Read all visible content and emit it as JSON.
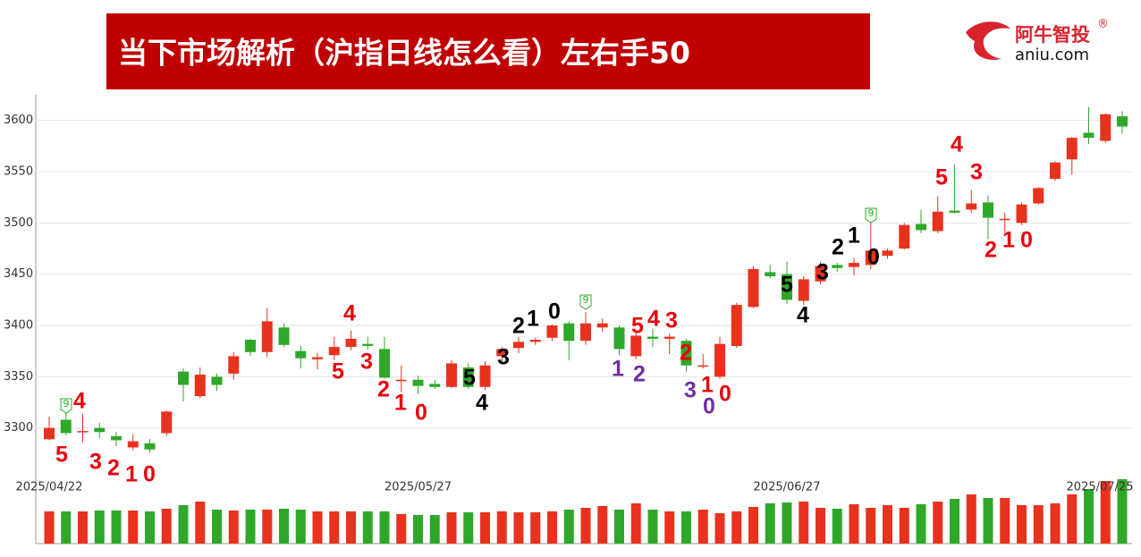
{
  "header": {
    "title": "当下市场解析（沪指日线怎么看）左右手50",
    "brand": "阿牛智投",
    "brand_mark": "®",
    "site": "aniu.com"
  },
  "chart_data": {
    "type": "candlestick",
    "categories": [
      "2025/04/22",
      null,
      null,
      null,
      null,
      null,
      null,
      null,
      null,
      null,
      null,
      null,
      null,
      null,
      null,
      null,
      null,
      null,
      null,
      null,
      null,
      null,
      "2025/05/27",
      null,
      null,
      null,
      null,
      null,
      null,
      null,
      null,
      null,
      null,
      null,
      null,
      null,
      null,
      null,
      null,
      null,
      null,
      null,
      null,
      null,
      "2025/06/27",
      null,
      null,
      null,
      null,
      null,
      null,
      null,
      null,
      null,
      null,
      null,
      null,
      null,
      null,
      null,
      null,
      null,
      null,
      null,
      "2025/07/25"
    ],
    "open": [
      3289,
      3308,
      3296,
      3300,
      3292,
      3281,
      3285,
      3295,
      3355,
      3331,
      3350,
      3353,
      3386,
      3374,
      3398,
      3375,
      3367,
      3371,
      3379,
      3382,
      3377,
      3346,
      3347,
      3343,
      3340,
      3359,
      3340,
      3370,
      3378,
      3384,
      3388,
      3402,
      3385,
      3398,
      3398,
      3370,
      3389,
      3387,
      3385,
      3360,
      3350,
      3380,
      3418,
      3452,
      3450,
      3424,
      3443,
      3459,
      3457,
      3459,
      3468,
      3475,
      3499,
      3492,
      3512,
      3513,
      3520,
      3503,
      3500,
      3519,
      3543,
      3562,
      3588,
      3580,
      3604
    ],
    "high": [
      3311,
      3315,
      3314,
      3305,
      3296,
      3294,
      3289,
      3317,
      3358,
      3359,
      3353,
      3374,
      3387,
      3417,
      3402,
      3380,
      3373,
      3389,
      3395,
      3389,
      3389,
      3361,
      3351,
      3347,
      3366,
      3363,
      3365,
      3379,
      3389,
      3388,
      3401,
      3404,
      3413,
      3407,
      3400,
      3393,
      3397,
      3392,
      3387,
      3372,
      3389,
      3422,
      3458,
      3459,
      3462,
      3448,
      3462,
      3461,
      3466,
      3501,
      3475,
      3500,
      3513,
      3526,
      3557,
      3532,
      3527,
      3510,
      3520,
      3535,
      3560,
      3584,
      3613,
      3607,
      3609
    ],
    "low": [
      3288,
      3293,
      3286,
      3290,
      3282,
      3278,
      3276,
      3292,
      3326,
      3329,
      3336,
      3347,
      3370,
      3369,
      3379,
      3358,
      3357,
      3366,
      3376,
      3376,
      3348,
      3335,
      3333,
      3338,
      3339,
      3338,
      3337,
      3362,
      3373,
      3381,
      3385,
      3366,
      3381,
      3394,
      3371,
      3367,
      3379,
      3372,
      3355,
      3358,
      3348,
      3378,
      3417,
      3446,
      3421,
      3420,
      3440,
      3452,
      3449,
      3455,
      3465,
      3474,
      3490,
      3490,
      3509,
      3510,
      3484,
      3490,
      3498,
      3518,
      3541,
      3547,
      3577,
      3578,
      3587
    ],
    "close": [
      3300,
      3295,
      3297,
      3296,
      3288,
      3287,
      3279,
      3316,
      3342,
      3352,
      3342,
      3370,
      3374,
      3404,
      3381,
      3368,
      3369,
      3379,
      3387,
      3380,
      3349,
      3347,
      3341,
      3340,
      3363,
      3340,
      3361,
      3377,
      3384,
      3386,
      3400,
      3385,
      3402,
      3402,
      3377,
      3390,
      3387,
      3389,
      3361,
      3361,
      3382,
      3420,
      3455,
      3448,
      3425,
      3445,
      3458,
      3456,
      3461,
      3473,
      3473,
      3498,
      3493,
      3511,
      3510,
      3519,
      3505,
      3504,
      3518,
      3534,
      3559,
      3583,
      3583,
      3606,
      3594
    ],
    "volume": [
      36,
      36,
      36,
      37,
      37,
      37,
      36,
      39,
      43,
      47,
      38,
      37,
      38,
      38,
      39,
      38,
      36,
      36,
      36,
      36,
      36,
      33,
      32,
      32,
      35,
      35,
      35,
      36,
      35,
      35,
      36,
      38,
      40,
      42,
      38,
      45,
      38,
      36,
      36,
      38,
      34,
      36,
      41,
      45,
      46,
      47,
      40,
      39,
      44,
      40,
      43,
      40,
      44,
      47,
      50,
      55,
      51,
      51,
      43,
      43,
      45,
      55,
      61,
      70,
      72
    ],
    "up_color": "#e8321e",
    "down_color": "#2fa82a",
    "ylim": [
      3250,
      3625
    ],
    "yticks": [
      3300,
      3350,
      3400,
      3450,
      3500,
      3550,
      3600
    ],
    "vlim": [
      0,
      72
    ],
    "grid": true,
    "annotations": [
      {
        "text": "5",
        "color": "#e8000b"
      },
      {
        "text": "4",
        "color": "#e8000b"
      },
      {
        "text": "3",
        "color": "#e8000b"
      },
      {
        "text": "2",
        "color": "#e8000b"
      },
      {
        "text": "1",
        "color": "#e8000b"
      },
      {
        "text": "0",
        "color": "#e8000b"
      },
      {
        "text": "4",
        "color": "#e8000b"
      },
      {
        "text": "5",
        "color": "#e8000b"
      },
      {
        "text": "3",
        "color": "#e8000b"
      },
      {
        "text": "2",
        "color": "#e8000b"
      },
      {
        "text": "1",
        "color": "#e8000b"
      },
      {
        "text": "0",
        "color": "#e8000b"
      },
      {
        "text": "5",
        "color": "#000000"
      },
      {
        "text": "4",
        "color": "#000000"
      },
      {
        "text": "3",
        "color": "#000000"
      },
      {
        "text": "2",
        "color": "#000000"
      },
      {
        "text": "1",
        "color": "#000000"
      },
      {
        "text": "0",
        "color": "#000000"
      },
      {
        "text": "1",
        "color": "#7030a0"
      },
      {
        "text": "2",
        "color": "#7030a0"
      },
      {
        "text": "5",
        "color": "#e8000b"
      },
      {
        "text": "4",
        "color": "#e8000b"
      },
      {
        "text": "3",
        "color": "#e8000b"
      },
      {
        "text": "2",
        "color": "#e8000b"
      },
      {
        "text": "3",
        "color": "#7030a0"
      },
      {
        "text": "1",
        "color": "#e8000b"
      },
      {
        "text": "0",
        "color": "#7030a0"
      },
      {
        "text": "0",
        "color": "#e8000b"
      },
      {
        "text": "5",
        "color": "#000000"
      },
      {
        "text": "4",
        "color": "#000000"
      },
      {
        "text": "3",
        "color": "#000000"
      },
      {
        "text": "2",
        "color": "#000000"
      },
      {
        "text": "1",
        "color": "#000000"
      },
      {
        "text": "0",
        "color": "#000000"
      },
      {
        "text": "5",
        "color": "#e8000b"
      },
      {
        "text": "4",
        "color": "#e8000b"
      },
      {
        "text": "3",
        "color": "#e8000b"
      },
      {
        "text": "2",
        "color": "#e8000b"
      },
      {
        "text": "1",
        "color": "#e8000b"
      },
      {
        "text": "0",
        "color": "#e8000b"
      }
    ],
    "markers": [
      "9",
      "9",
      "9"
    ],
    "marker_color": "#2fa82a"
  }
}
